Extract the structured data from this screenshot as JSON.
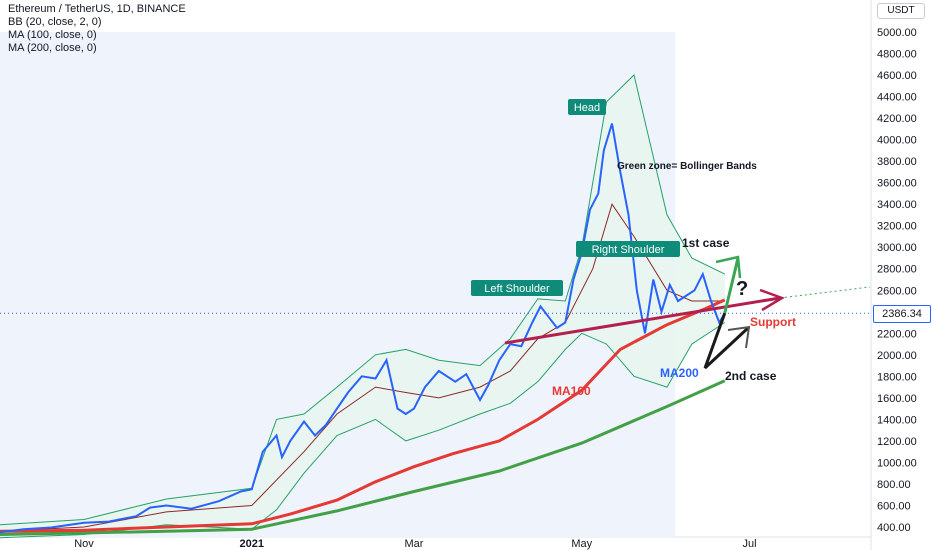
{
  "legend": {
    "symbol": "Ethereum / TetherUS, 1D, BINANCE",
    "bb": "BB (20, close, 2, 0)",
    "ma100": "MA (100, close, 0)",
    "ma200": "MA (200, close, 0)"
  },
  "price_axis": {
    "currency_label": "USDT",
    "last_price": "2386.34"
  },
  "colors": {
    "price": "#2962ff",
    "bb_band": "#26a269",
    "bb_fill": "#e8f5ee",
    "bb_basis": "#8b2a2a",
    "ma100": "#e53935",
    "ma200": "#43a047",
    "support": "#b2204e",
    "case1_arrow": "#3aa655",
    "case2_arrow": "#1a1a1a",
    "shaded_zone": "#eef3fc",
    "label_bg": "#0f8b7a"
  },
  "chart_data": {
    "type": "line",
    "title": "Ethereum / TetherUS, 1D, BINANCE",
    "xlabel": "",
    "ylabel": "",
    "x_ticks": [
      "Nov",
      "2021",
      "Mar",
      "May",
      "Jul"
    ],
    "y_ticks": [
      "400.00",
      "600.00",
      "800.00",
      "1000.00",
      "1200.00",
      "1400.00",
      "1600.00",
      "1800.00",
      "2000.00",
      "2200.00",
      "2400.00",
      "2600.00",
      "2800.00",
      "3000.00",
      "3200.00",
      "3400.00",
      "3600.00",
      "3800.00",
      "4000.00",
      "4200.00",
      "4400.00",
      "4600.00",
      "4800.00",
      "5000.00"
    ],
    "ylim": [
      320,
      5200
    ],
    "x_dates": [
      "2020-10-01",
      "2020-11-01",
      "2020-12-01",
      "2021-01-01",
      "2021-02-01",
      "2021-03-01",
      "2021-04-01",
      "2021-05-01",
      "2021-06-01",
      "2021-07-01",
      "2021-08-01"
    ],
    "series": [
      {
        "name": "ETHUSDT close",
        "dates": [
          "2020-10-01",
          "2020-10-10",
          "2020-10-20",
          "2020-11-01",
          "2020-11-10",
          "2020-11-20",
          "2020-11-25",
          "2020-12-01",
          "2020-12-10",
          "2020-12-20",
          "2020-12-28",
          "2021-01-01",
          "2021-01-05",
          "2021-01-10",
          "2021-01-12",
          "2021-01-15",
          "2021-01-20",
          "2021-01-24",
          "2021-01-28",
          "2021-02-01",
          "2021-02-05",
          "2021-02-10",
          "2021-02-15",
          "2021-02-19",
          "2021-02-23",
          "2021-02-26",
          "2021-03-01",
          "2021-03-05",
          "2021-03-10",
          "2021-03-13",
          "2021-03-16",
          "2021-03-20",
          "2021-03-25",
          "2021-03-28",
          "2021-04-01",
          "2021-04-05",
          "2021-04-09",
          "2021-04-13",
          "2021-04-16",
          "2021-04-19",
          "2021-04-22",
          "2021-04-25",
          "2021-04-28",
          "2021-05-01",
          "2021-05-04",
          "2021-05-07",
          "2021-05-09",
          "2021-05-12",
          "2021-05-15",
          "2021-05-18",
          "2021-05-21",
          "2021-05-24",
          "2021-05-27",
          "2021-05-30",
          "2021-06-02",
          "2021-06-05",
          "2021-06-08",
          "2021-06-11",
          "2021-06-14",
          "2021-06-17",
          "2021-06-20",
          "2021-06-22"
        ],
        "values": [
          350,
          380,
          395,
          440,
          450,
          500,
          580,
          600,
          570,
          640,
          730,
          750,
          1100,
          1250,
          1050,
          1200,
          1380,
          1250,
          1350,
          1500,
          1650,
          1800,
          1780,
          1950,
          1500,
          1450,
          1500,
          1700,
          1850,
          1800,
          1750,
          1820,
          1580,
          1720,
          1950,
          2100,
          2080,
          2300,
          2450,
          2350,
          2250,
          2300,
          2700,
          2950,
          3350,
          3500,
          3900,
          4150,
          3700,
          3300,
          2600,
          2200,
          2700,
          2400,
          2650,
          2500,
          2550,
          2600,
          2750,
          2500,
          2300,
          2386
        ]
      },
      {
        "name": "MA100",
        "dates": [
          "2020-10-01",
          "2020-11-01",
          "2020-12-01",
          "2021-01-01",
          "2021-01-15",
          "2021-02-01",
          "2021-02-15",
          "2021-03-01",
          "2021-03-15",
          "2021-04-01",
          "2021-04-15",
          "2021-05-01",
          "2021-05-15",
          "2021-06-01",
          "2021-06-15",
          "2021-06-22"
        ],
        "values": [
          360,
          370,
          400,
          430,
          520,
          650,
          820,
          960,
          1080,
          1200,
          1400,
          1670,
          2050,
          2280,
          2430,
          2510
        ]
      },
      {
        "name": "MA200",
        "dates": [
          "2020-10-01",
          "2020-11-01",
          "2020-12-01",
          "2021-01-01",
          "2021-02-01",
          "2021-03-01",
          "2021-04-01",
          "2021-05-01",
          "2021-06-01",
          "2021-06-22"
        ],
        "values": [
          330,
          345,
          360,
          380,
          550,
          730,
          920,
          1180,
          1520,
          1760
        ]
      },
      {
        "name": "BB upper",
        "dates": [
          "2020-10-01",
          "2020-11-01",
          "2020-12-01",
          "2021-01-01",
          "2021-01-10",
          "2021-01-20",
          "2021-02-01",
          "2021-02-15",
          "2021-02-26",
          "2021-03-10",
          "2021-03-25",
          "2021-04-05",
          "2021-04-15",
          "2021-04-25",
          "2021-05-01",
          "2021-05-10",
          "2021-05-20",
          "2021-06-01",
          "2021-06-10",
          "2021-06-22"
        ],
        "values": [
          420,
          470,
          660,
          760,
          1400,
          1450,
          1700,
          2000,
          2050,
          1950,
          1900,
          2150,
          2520,
          2500,
          3000,
          4350,
          4600,
          3300,
          2900,
          2750
        ]
      },
      {
        "name": "BB lower",
        "dates": [
          "2020-10-01",
          "2020-11-01",
          "2020-12-01",
          "2021-01-01",
          "2021-01-10",
          "2021-01-20",
          "2021-02-01",
          "2021-02-15",
          "2021-02-26",
          "2021-03-10",
          "2021-03-25",
          "2021-04-05",
          "2021-04-15",
          "2021-04-25",
          "2021-05-01",
          "2021-05-10",
          "2021-05-20",
          "2021-06-01",
          "2021-06-10",
          "2021-06-22"
        ],
        "values": [
          300,
          330,
          420,
          380,
          560,
          900,
          1250,
          1400,
          1200,
          1300,
          1450,
          1550,
          1750,
          2050,
          2200,
          2100,
          1800,
          1700,
          2100,
          2300
        ]
      },
      {
        "name": "BB basis",
        "dates": [
          "2020-10-01",
          "2020-11-01",
          "2020-12-01",
          "2021-01-01",
          "2021-01-20",
          "2021-02-01",
          "2021-02-15",
          "2021-02-26",
          "2021-03-10",
          "2021-03-25",
          "2021-04-05",
          "2021-04-15",
          "2021-04-25",
          "2021-05-05",
          "2021-05-12",
          "2021-05-20",
          "2021-06-01",
          "2021-06-10",
          "2021-06-22"
        ],
        "values": [
          360,
          400,
          540,
          600,
          1100,
          1450,
          1700,
          1650,
          1600,
          1700,
          1850,
          2150,
          2300,
          2800,
          3400,
          3100,
          2600,
          2500,
          2500
        ]
      }
    ],
    "annotations": [
      {
        "text": "Head"
      },
      {
        "text": "Left Shoulder"
      },
      {
        "text": "Right Shoulder"
      },
      {
        "text": "Green zone= Bollinger Bands"
      },
      {
        "text": "1st case"
      },
      {
        "text": "2nd case"
      },
      {
        "text": "Support"
      },
      {
        "text": "MA100"
      },
      {
        "text": "MA200"
      },
      {
        "text": "?"
      }
    ],
    "grid": false,
    "legend_position": "top-left"
  }
}
